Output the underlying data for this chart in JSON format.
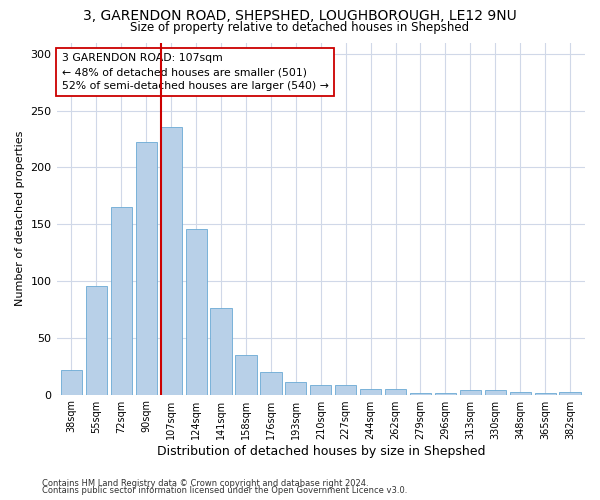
{
  "title_line1": "3, GARENDON ROAD, SHEPSHED, LOUGHBOROUGH, LE12 9NU",
  "title_line2": "Size of property relative to detached houses in Shepshed",
  "xlabel": "Distribution of detached houses by size in Shepshed",
  "ylabel": "Number of detached properties",
  "categories": [
    "38sqm",
    "55sqm",
    "72sqm",
    "90sqm",
    "107sqm",
    "124sqm",
    "141sqm",
    "158sqm",
    "176sqm",
    "193sqm",
    "210sqm",
    "227sqm",
    "244sqm",
    "262sqm",
    "279sqm",
    "296sqm",
    "313sqm",
    "330sqm",
    "348sqm",
    "365sqm",
    "382sqm"
  ],
  "values": [
    22,
    96,
    165,
    222,
    236,
    146,
    76,
    35,
    20,
    11,
    8,
    8,
    5,
    5,
    1,
    1,
    4,
    4,
    2,
    1,
    2
  ],
  "bar_color": "#b8d0e8",
  "bar_edgecolor": "#6aaad4",
  "vline_color": "#cc0000",
  "annotation_text": "3 GARENDON ROAD: 107sqm\n← 48% of detached houses are smaller (501)\n52% of semi-detached houses are larger (540) →",
  "annotation_box_edgecolor": "#cc0000",
  "ylim": [
    0,
    310
  ],
  "yticks": [
    0,
    50,
    100,
    150,
    200,
    250,
    300
  ],
  "footer_line1": "Contains HM Land Registry data © Crown copyright and database right 2024.",
  "footer_line2": "Contains public sector information licensed under the Open Government Licence v3.0.",
  "bg_color": "#ffffff",
  "plot_bg_color": "#ffffff",
  "grid_color": "#d0d8e8"
}
